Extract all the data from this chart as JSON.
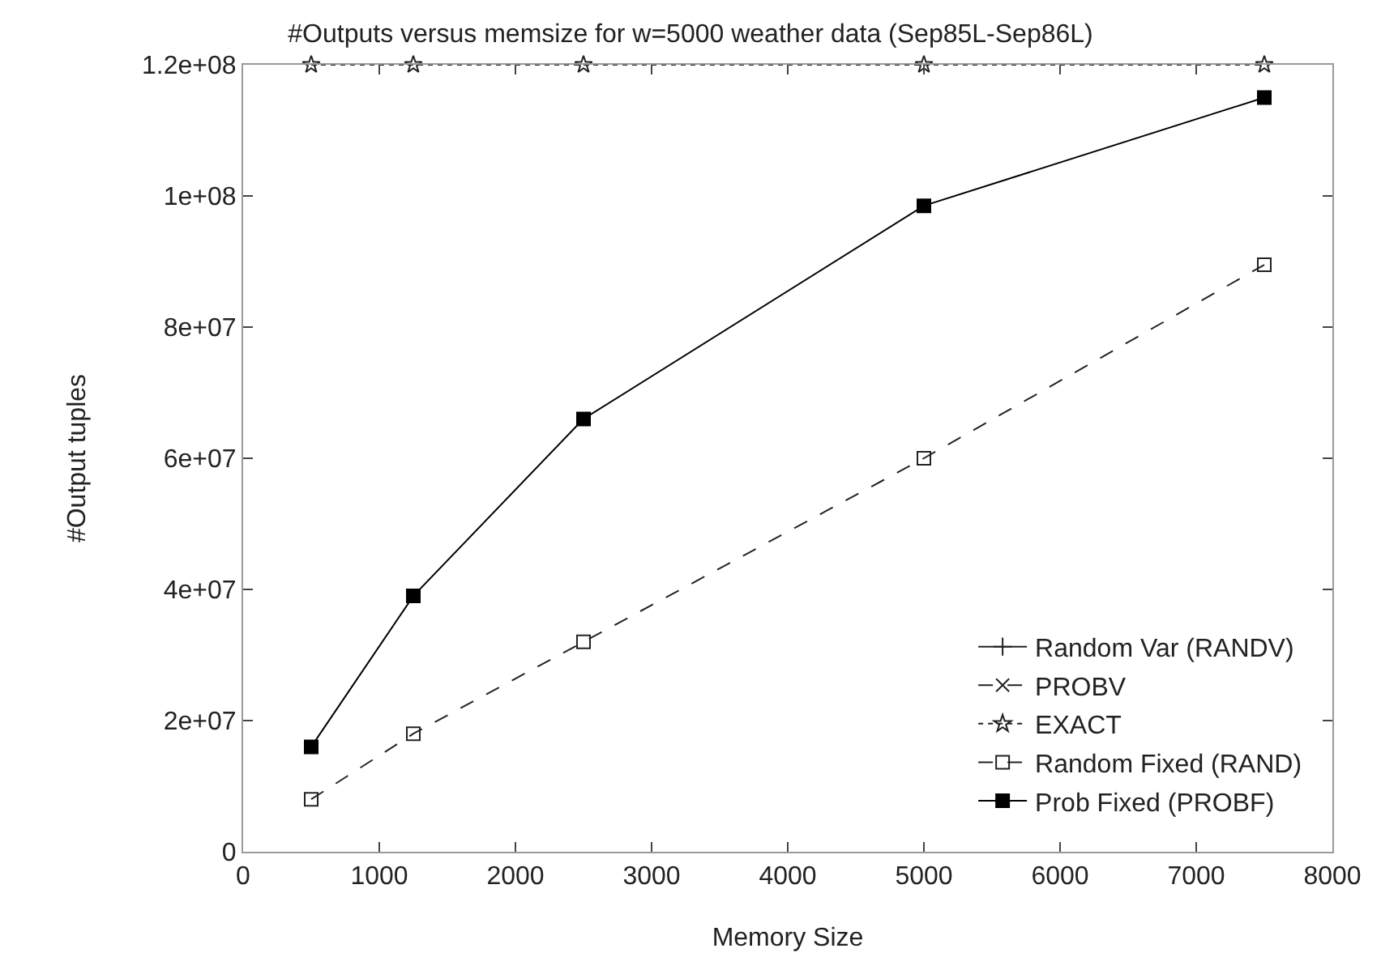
{
  "chart_data": {
    "type": "line",
    "title": "#Outputs versus memsize for w=5000 weather data (Sep85L-Sep86L)",
    "xlabel": "Memory Size",
    "ylabel": "#Output tuples",
    "x": [
      500,
      1250,
      2500,
      5000,
      7500
    ],
    "series": [
      {
        "name": "Random Var (RANDV)",
        "color": "#222222",
        "marker": "cross",
        "line_style": "solid",
        "values": [
          null,
          null,
          null,
          null,
          null
        ]
      },
      {
        "name": "PROBV",
        "color": "#222222",
        "marker": "x",
        "line_style": "dashed",
        "values": [
          null,
          null,
          null,
          null,
          null
        ]
      },
      {
        "name": "EXACT",
        "color": "#222222",
        "marker": "star",
        "line_style": "dotted",
        "values": [
          120000000,
          120000000,
          120000000,
          120000000,
          120000000
        ]
      },
      {
        "name": "Random Fixed (RAND)",
        "color": "#222222",
        "marker": "square-open",
        "line_style": "dashed",
        "values": [
          8000000,
          18000000,
          32000000,
          60000000,
          89500000
        ]
      },
      {
        "name": "Prob Fixed (PROBF)",
        "color": "#000000",
        "marker": "square",
        "line_style": "solid",
        "values": [
          16000000,
          39000000,
          66000000,
          98500000,
          115000000
        ]
      }
    ],
    "xlim": [
      0,
      8000
    ],
    "xticks": [
      0,
      1000,
      2000,
      3000,
      4000,
      5000,
      6000,
      7000,
      8000
    ],
    "ylim": [
      0,
      120000000
    ],
    "yticks": [
      0,
      {
        "value": 20000000,
        "label": "2e+07"
      },
      {
        "value": 40000000,
        "label": "4e+07"
      },
      {
        "value": 60000000,
        "label": "6e+07"
      },
      {
        "value": 80000000,
        "label": "8e+07"
      },
      {
        "value": 100000000,
        "label": "1e+08"
      },
      {
        "value": 120000000,
        "label": "1.2e+08"
      }
    ],
    "grid": false,
    "legend": "bottom right"
  }
}
